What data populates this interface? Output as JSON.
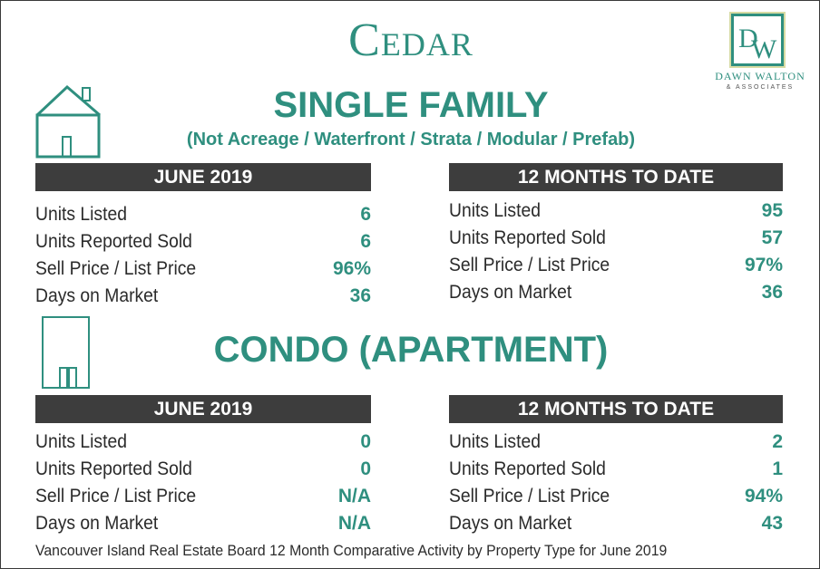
{
  "title": "Cedar",
  "logo": {
    "monogram": "DW",
    "name": "DAWN WALTON",
    "sub": "& ASSOCIATES"
  },
  "colors": {
    "accent": "#2f8f7f",
    "header_bg": "#3d3d3d",
    "text": "#2b2b2b"
  },
  "single_family": {
    "heading": "SINGLE FAMILY",
    "subtitle": "(Not Acreage / Waterfront / Strata / Modular / Prefab)",
    "icon": "house-icon",
    "month": {
      "header": "JUNE 2019",
      "rows": [
        {
          "label": "Units Listed",
          "value": "6"
        },
        {
          "label": "Units Reported Sold",
          "value": "6"
        },
        {
          "label": "Sell Price / List Price",
          "value": "96%"
        },
        {
          "label": "Days on Market",
          "value": "36"
        }
      ]
    },
    "ytd": {
      "header": "12 MONTHS TO DATE",
      "rows": [
        {
          "label": "Units Listed",
          "value": "95"
        },
        {
          "label": "Units Reported Sold",
          "value": "57"
        },
        {
          "label": "Sell Price / List Price",
          "value": "97%"
        },
        {
          "label": "Days on Market",
          "value": "36"
        }
      ]
    }
  },
  "condo": {
    "heading": "CONDO (APARTMENT)",
    "icon": "building-icon",
    "month": {
      "header": "JUNE 2019",
      "rows": [
        {
          "label": "Units Listed",
          "value": "0"
        },
        {
          "label": "Units Reported Sold",
          "value": "0"
        },
        {
          "label": "Sell Price / List Price",
          "value": "N/A"
        },
        {
          "label": "Days on Market",
          "value": "N/A"
        }
      ]
    },
    "ytd": {
      "header": "12 MONTHS TO DATE",
      "rows": [
        {
          "label": "Units Listed",
          "value": "2"
        },
        {
          "label": "Units Reported Sold",
          "value": "1"
        },
        {
          "label": "Sell Price / List Price",
          "value": "94%"
        },
        {
          "label": "Days on Market",
          "value": "43"
        }
      ]
    }
  },
  "footer": "Vancouver Island Real Estate Board 12 Month Comparative Activity by Property Type for June 2019"
}
